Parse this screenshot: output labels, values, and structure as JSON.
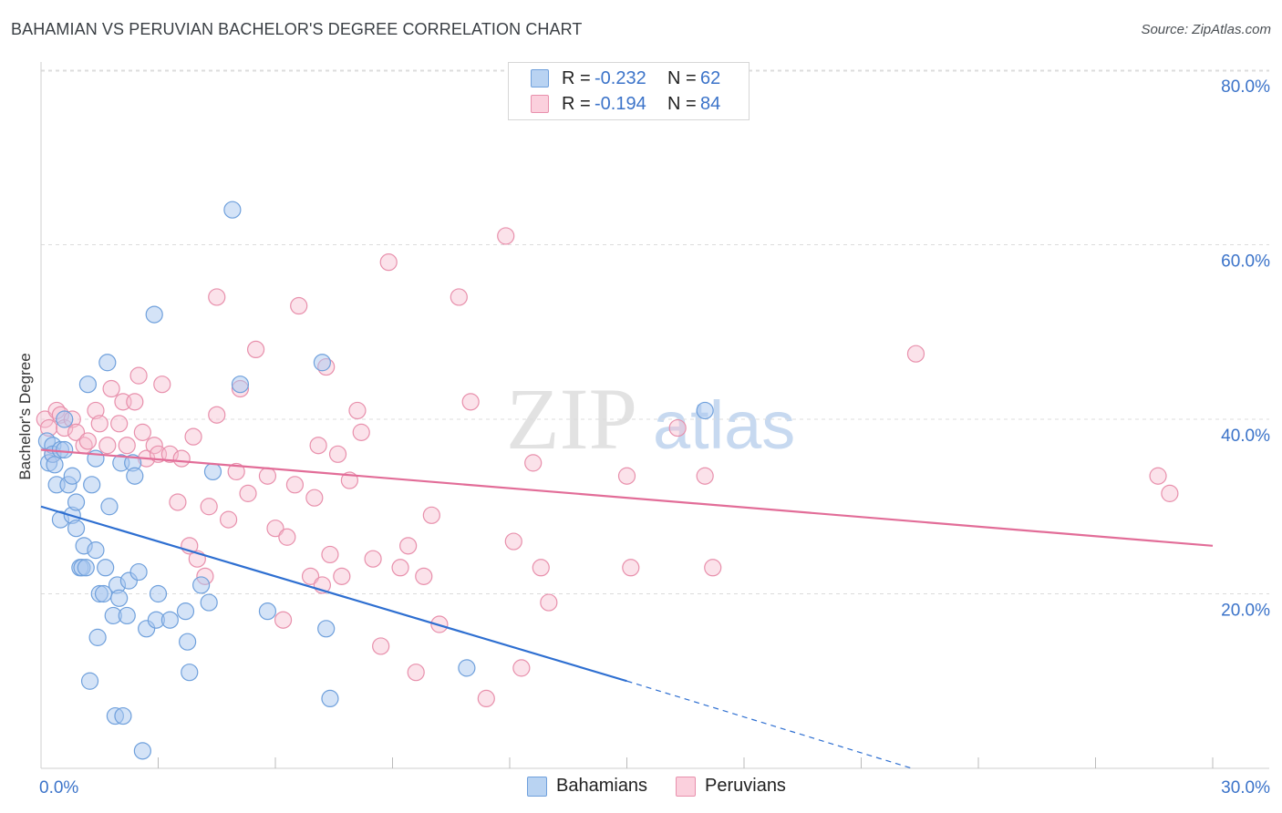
{
  "title": "BAHAMIAN VS PERUVIAN BACHELOR'S DEGREE CORRELATION CHART",
  "source": "Source: ZipAtlas.com",
  "watermark": {
    "zip": "ZIP",
    "atlas": "atlas"
  },
  "legend": {
    "rows": [
      {
        "r_label": "R =",
        "r_value": "-0.232",
        "n_label": "N =",
        "n_value": "62"
      },
      {
        "r_label": "R =",
        "r_value": "-0.194",
        "n_label": "N =",
        "n_value": "84"
      }
    ]
  },
  "bottom_legend": {
    "bahamians": "Bahamians",
    "peruvians": "Peruvians"
  },
  "colors": {
    "blue_fill": "#a9c8ef",
    "blue_stroke": "#6fa0dc",
    "blue_line": "#2e6fd1",
    "pink_fill": "#f7bfd0",
    "pink_stroke": "#e890ac",
    "pink_line": "#e26d98",
    "tick_text": "#3b73c9",
    "grid": "#dcdcdc"
  },
  "chart_data": {
    "type": "scatter",
    "title": "BAHAMIAN VS PERUVIAN BACHELOR'S DEGREE CORRELATION CHART",
    "xlabel": "",
    "ylabel": "Bachelor's Degree",
    "xlim": [
      0,
      30
    ],
    "ylim": [
      0,
      83
    ],
    "x_tick_labels": [
      "0.0%",
      "30.0%"
    ],
    "y_ticks": [
      20,
      40,
      60,
      80
    ],
    "y_tick_labels": [
      "20.0%",
      "40.0%",
      "60.0%",
      "80.0%"
    ],
    "grid": true,
    "legend_position": "top-center",
    "series": [
      {
        "name": "Bahamians",
        "color": "#6fa0dc",
        "r": -0.232,
        "n": 62,
        "trend": {
          "x0": 0,
          "y0": 30,
          "x1": 15,
          "y1": 10,
          "dashed_to_x": 22.3,
          "dashed_to_y": 0
        },
        "points": [
          [
            0.15,
            37.5
          ],
          [
            0.2,
            35
          ],
          [
            0.3,
            37
          ],
          [
            0.3,
            36
          ],
          [
            0.35,
            34.8
          ],
          [
            0.4,
            32.5
          ],
          [
            0.5,
            36.5
          ],
          [
            0.5,
            28.5
          ],
          [
            0.6,
            40
          ],
          [
            0.6,
            36.5
          ],
          [
            0.7,
            32.5
          ],
          [
            0.8,
            29
          ],
          [
            0.8,
            33.5
          ],
          [
            0.9,
            30.5
          ],
          [
            0.9,
            27.5
          ],
          [
            1.0,
            23
          ],
          [
            1.05,
            23
          ],
          [
            1.1,
            25.5
          ],
          [
            1.15,
            23
          ],
          [
            1.2,
            44
          ],
          [
            1.25,
            10
          ],
          [
            1.3,
            32.5
          ],
          [
            1.4,
            25
          ],
          [
            1.45,
            15
          ],
          [
            1.4,
            35.5
          ],
          [
            1.5,
            20
          ],
          [
            1.6,
            20
          ],
          [
            1.65,
            23
          ],
          [
            1.7,
            46.5
          ],
          [
            1.75,
            30
          ],
          [
            1.85,
            17.5
          ],
          [
            1.9,
            6
          ],
          [
            1.95,
            21
          ],
          [
            2.0,
            19.5
          ],
          [
            2.05,
            35
          ],
          [
            2.1,
            6
          ],
          [
            2.2,
            17.5
          ],
          [
            2.25,
            21.5
          ],
          [
            2.35,
            35
          ],
          [
            2.4,
            33.5
          ],
          [
            2.5,
            22.5
          ],
          [
            2.6,
            2
          ],
          [
            2.7,
            16
          ],
          [
            2.9,
            52
          ],
          [
            2.95,
            17
          ],
          [
            3.0,
            20
          ],
          [
            3.3,
            17
          ],
          [
            3.7,
            18
          ],
          [
            3.75,
            14.5
          ],
          [
            3.8,
            11
          ],
          [
            4.1,
            21
          ],
          [
            4.3,
            19
          ],
          [
            4.4,
            34
          ],
          [
            4.9,
            64
          ],
          [
            5.1,
            44
          ],
          [
            5.8,
            18
          ],
          [
            7.2,
            46.5
          ],
          [
            7.3,
            16
          ],
          [
            7.4,
            8
          ],
          [
            10.9,
            11.5
          ],
          [
            17.0,
            41
          ]
        ]
      },
      {
        "name": "Peruvians",
        "color": "#e890ac",
        "r": -0.194,
        "n": 84,
        "trend": {
          "x0": 0,
          "y0": 36.5,
          "x1": 30,
          "y1": 25.5
        },
        "points": [
          [
            0.1,
            40
          ],
          [
            0.2,
            39
          ],
          [
            0.3,
            36
          ],
          [
            0.4,
            41
          ],
          [
            0.5,
            40.5
          ],
          [
            0.6,
            39
          ],
          [
            0.8,
            40
          ],
          [
            0.9,
            38.5
          ],
          [
            1.1,
            37
          ],
          [
            1.2,
            37.5
          ],
          [
            1.4,
            41
          ],
          [
            1.5,
            39.5
          ],
          [
            1.7,
            37
          ],
          [
            1.8,
            43.5
          ],
          [
            2.0,
            39.5
          ],
          [
            2.1,
            42
          ],
          [
            2.2,
            37
          ],
          [
            2.4,
            42
          ],
          [
            2.5,
            45
          ],
          [
            2.6,
            38.5
          ],
          [
            2.7,
            35.5
          ],
          [
            2.9,
            37
          ],
          [
            3.0,
            36
          ],
          [
            3.1,
            44
          ],
          [
            3.3,
            36
          ],
          [
            3.5,
            30.5
          ],
          [
            3.6,
            35.5
          ],
          [
            3.8,
            25.5
          ],
          [
            3.9,
            38
          ],
          [
            4.0,
            24
          ],
          [
            4.2,
            22
          ],
          [
            4.3,
            30
          ],
          [
            4.5,
            54
          ],
          [
            4.5,
            40.5
          ],
          [
            4.8,
            28.5
          ],
          [
            5.0,
            34
          ],
          [
            5.1,
            43.5
          ],
          [
            5.3,
            31.5
          ],
          [
            5.5,
            48
          ],
          [
            5.8,
            33.5
          ],
          [
            6.0,
            27.5
          ],
          [
            6.2,
            17
          ],
          [
            6.3,
            26.5
          ],
          [
            6.5,
            32.5
          ],
          [
            6.6,
            53
          ],
          [
            6.9,
            22
          ],
          [
            7.0,
            31
          ],
          [
            7.1,
            37
          ],
          [
            7.2,
            21
          ],
          [
            7.3,
            46
          ],
          [
            7.4,
            24.5
          ],
          [
            7.6,
            36
          ],
          [
            7.7,
            22
          ],
          [
            7.9,
            33
          ],
          [
            8.1,
            41
          ],
          [
            8.2,
            38.5
          ],
          [
            8.5,
            24
          ],
          [
            8.7,
            14
          ],
          [
            8.9,
            58
          ],
          [
            9.2,
            23
          ],
          [
            9.4,
            25.5
          ],
          [
            9.6,
            11
          ],
          [
            9.8,
            22
          ],
          [
            10.0,
            29
          ],
          [
            10.2,
            16.5
          ],
          [
            10.7,
            54
          ],
          [
            11.0,
            42
          ],
          [
            11.4,
            8
          ],
          [
            11.9,
            61
          ],
          [
            12.1,
            26
          ],
          [
            12.3,
            11.5
          ],
          [
            12.6,
            35
          ],
          [
            12.8,
            23
          ],
          [
            13.0,
            19
          ],
          [
            15.0,
            33.5
          ],
          [
            15.1,
            23
          ],
          [
            16.3,
            39
          ],
          [
            17.0,
            33.5
          ],
          [
            17.2,
            23
          ],
          [
            22.4,
            47.5
          ],
          [
            28.6,
            33.5
          ],
          [
            28.9,
            31.5
          ]
        ]
      }
    ]
  }
}
